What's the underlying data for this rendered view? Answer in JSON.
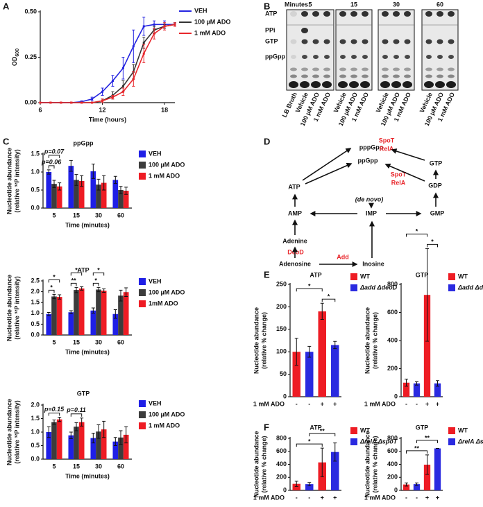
{
  "panel_labels": [
    "A",
    "B",
    "C",
    "D",
    "E",
    "F"
  ],
  "gel": {
    "header": "Minutes:",
    "timepoints": [
      "5",
      "15",
      "30",
      "60"
    ],
    "rows": [
      "ATP",
      "PPi",
      "GTP",
      "ppGpp"
    ],
    "lanes": [
      [
        "LB Broth",
        "Vehicle",
        "100 µM ADO",
        "1 mM ADO"
      ],
      [
        "Vehicle",
        "100 µM ADO",
        "1 mM ADO"
      ],
      [
        "Vehicle",
        "100 µM ADO",
        "1 mM ADO"
      ],
      [
        "Vehicle",
        "100 µM ADO",
        "1 mM ADO"
      ]
    ]
  },
  "diagram": {
    "nodes": [
      "pppGpp",
      "ppGpp",
      "GTP",
      "GDP",
      "ATP",
      "(de novo)",
      "IMP",
      "AMP",
      "GMP",
      "Adenine",
      "Adenosine",
      "Inosine"
    ],
    "enzymes": [
      "SpoT",
      "RelA",
      "SpoT",
      "RelA",
      "DeoD",
      "Add"
    ]
  },
  "chart_data": [
    {
      "type": "line",
      "x": [
        6,
        7,
        8,
        9,
        10,
        11,
        12,
        13,
        14,
        15,
        16,
        17,
        18,
        19
      ],
      "series": [
        {
          "name": "VEH",
          "color": "#2424e0",
          "values": [
            0,
            0,
            0,
            0,
            0.005,
            0.02,
            0.06,
            0.12,
            0.19,
            0.31,
            0.42,
            0.43,
            0.43,
            0.43
          ],
          "errors": [
            0,
            0,
            0,
            0,
            0.005,
            0.01,
            0.02,
            0.03,
            0.06,
            0.09,
            0.05,
            0.02,
            0.02,
            0.01
          ]
        },
        {
          "name": "100 µM ADO",
          "color": "#333333",
          "values": [
            0,
            0,
            0,
            0,
            0,
            0,
            0.01,
            0.04,
            0.09,
            0.17,
            0.33,
            0.4,
            0.42,
            0.43
          ],
          "errors": [
            0,
            0,
            0,
            0,
            0,
            0,
            0.01,
            0.02,
            0.03,
            0.04,
            0.03,
            0.02,
            0.01,
            0.01
          ]
        },
        {
          "name": "1 mM ADO",
          "color": "#e8262b",
          "values": [
            0,
            0,
            0,
            0,
            0,
            0,
            0.01,
            0.03,
            0.06,
            0.13,
            0.27,
            0.38,
            0.42,
            0.43
          ],
          "errors": [
            0,
            0,
            0,
            0,
            0,
            0,
            0.01,
            0.01,
            0.02,
            0.04,
            0.05,
            0.03,
            0.02,
            0.01
          ]
        }
      ],
      "xlim": [
        6,
        19
      ],
      "xticks": [
        6,
        12,
        18
      ],
      "ylim": [
        0,
        0.5
      ],
      "yticks": [
        {
          "value": 0,
          "label": "0.00"
        },
        {
          "value": 0.25,
          "label": "0.25"
        },
        {
          "value": 0.5,
          "label": "0.50"
        }
      ],
      "xlabel": "Time (hours)",
      "ylabel": [
        "OD",
        "600"
      ]
    },
    {
      "type": "grouped_bar",
      "title": "ppGpp",
      "categories": [
        "5",
        "15",
        "30",
        "60"
      ],
      "series": [
        {
          "name": "VEH",
          "color": "#1f1fe6",
          "values": [
            1.0,
            1.17,
            1.02,
            0.78
          ],
          "errors": [
            0.06,
            0.15,
            0.2,
            0.1
          ]
        },
        {
          "name": "100 µM ADO",
          "color": "#3c3c3c",
          "values": [
            0.67,
            0.78,
            0.65,
            0.5
          ],
          "errors": [
            0.1,
            0.15,
            0.15,
            0.1
          ]
        },
        {
          "name": "1 mM ADO",
          "color": "#ee1c24",
          "values": [
            0.6,
            0.75,
            0.7,
            0.48
          ],
          "errors": [
            0.1,
            0.15,
            0.2,
            0.1
          ]
        }
      ],
      "ylim": [
        0,
        1.5
      ],
      "yticks": [
        {
          "value": 0,
          "label": "0.0"
        },
        {
          "value": 0.5,
          "label": "0.5"
        },
        {
          "value": 1,
          "label": "1.0"
        },
        {
          "value": 1.5,
          "label": "1.5"
        }
      ],
      "xlabel": "Time (minutes)",
      "ylabel": [
        "Nucleotide abundance",
        "(relative ³²P intensity)"
      ],
      "brackets": [
        {
          "label": "p=0.06",
          "category": 0,
          "from": 0,
          "to": 1
        },
        {
          "label": "p=0.07",
          "category": 0,
          "from": 0,
          "to": 2
        }
      ]
    },
    {
      "type": "grouped_bar",
      "title": "ATP",
      "categories": [
        "5",
        "15",
        "30",
        "60"
      ],
      "series": [
        {
          "name": "VEH",
          "color": "#1f1fe6",
          "values": [
            0.97,
            1.05,
            1.13,
            0.97
          ],
          "errors": [
            0.07,
            0.07,
            0.12,
            0.2
          ]
        },
        {
          "name": "100 µM ADO",
          "color": "#3c3c3c",
          "values": [
            1.78,
            2.08,
            2.1,
            1.82
          ],
          "errors": [
            0.1,
            0.12,
            0.1,
            0.25
          ]
        },
        {
          "name": "1mM ADO",
          "color": "#ee1c24",
          "values": [
            1.76,
            2.15,
            2.05,
            1.98
          ],
          "errors": [
            0.1,
            0.08,
            0.08,
            0.2
          ]
        }
      ],
      "ylim": [
        0,
        2.5
      ],
      "yticks": [
        {
          "value": 0,
          "label": "0.0"
        },
        {
          "value": 0.5,
          "label": "0.5"
        },
        {
          "value": 1,
          "label": "1.0"
        },
        {
          "value": 1.5,
          "label": "1.5"
        },
        {
          "value": 2,
          "label": "2.0"
        },
        {
          "value": 2.5,
          "label": "2.5"
        }
      ],
      "xlabel": "Time (minutes)",
      "ylabel": [
        "Nucleotide abundance",
        "(relative ³²P intensity)"
      ],
      "brackets": [
        {
          "label": "*",
          "category": 0,
          "from": 0,
          "to": 1
        },
        {
          "label": "*",
          "category": 0,
          "from": 0,
          "to": 2
        },
        {
          "label": "**",
          "category": 1,
          "from": 0,
          "to": 1
        },
        {
          "label": "*",
          "category": 1,
          "from": 0,
          "to": 2
        },
        {
          "label": "*",
          "category": 2,
          "from": 0,
          "to": 1
        },
        {
          "label": "*",
          "category": 2,
          "from": 0,
          "to": 2
        }
      ]
    },
    {
      "type": "grouped_bar",
      "title": "GTP",
      "categories": [
        "5",
        "15",
        "30",
        "60"
      ],
      "series": [
        {
          "name": "VEH",
          "color": "#1f1fe6",
          "values": [
            1.0,
            0.88,
            0.78,
            0.65
          ],
          "errors": [
            0.2,
            0.12,
            0.18,
            0.15
          ]
        },
        {
          "name": "100 µM ADO",
          "color": "#3c3c3c",
          "values": [
            1.37,
            1.2,
            1.02,
            0.8
          ],
          "errors": [
            0.08,
            0.15,
            0.25,
            0.25
          ]
        },
        {
          "name": "1 mM ADO",
          "color": "#ee1c24",
          "values": [
            1.47,
            1.37,
            1.1,
            0.9
          ],
          "errors": [
            0.08,
            0.15,
            0.3,
            0.3
          ]
        }
      ],
      "ylim": [
        0,
        2
      ],
      "yticks": [
        {
          "value": 0,
          "label": "0.0"
        },
        {
          "value": 0.5,
          "label": "0.5"
        },
        {
          "value": 1,
          "label": "1.0"
        },
        {
          "value": 1.5,
          "label": "1.5"
        },
        {
          "value": 2,
          "label": "2.0"
        }
      ],
      "xlabel": "Time (minutes)",
      "ylabel": [
        "Nucleotide abundance",
        "(relative ³²P intensity)"
      ],
      "brackets": [
        {
          "label": "p=0.15",
          "category": 0,
          "from": 0,
          "to": 2
        },
        {
          "label": "p=0.11",
          "category": 1,
          "from": 0,
          "to": 2
        }
      ]
    },
    {
      "type": "bar",
      "title": "ATP",
      "categories": [
        "-",
        "-",
        "+",
        "+"
      ],
      "xlabel": "1 mM ADO",
      "series": [
        {
          "name": "WT",
          "color": "#ee1c24",
          "values": [
            100,
            null,
            190,
            null
          ],
          "errors": [
            30,
            null,
            18,
            null
          ]
        },
        {
          "name": "Δadd ΔdeoD",
          "color": "#2a2ae0",
          "values": [
            null,
            100,
            null,
            115
          ],
          "errors": [
            null,
            12,
            null,
            8
          ]
        }
      ],
      "ylim": [
        0,
        250
      ],
      "yticks": [
        0,
        50,
        100,
        150,
        200,
        250
      ],
      "ylabel": [
        "Nucleotide abundance",
        "(relative % change)"
      ],
      "brackets": [
        {
          "label": "*",
          "from": 2,
          "to": 3
        },
        {
          "label": "*",
          "from": 0,
          "to": 2
        }
      ]
    },
    {
      "type": "bar",
      "title": "GTP",
      "categories": [
        "-",
        "-",
        "+",
        "+"
      ],
      "xlabel": "1 mM ADO",
      "series": [
        {
          "name": "WT",
          "color": "#ee1c24",
          "values": [
            100,
            null,
            725,
            null
          ],
          "errors": [
            25,
            null,
            330,
            null
          ]
        },
        {
          "name": "Δadd ΔdeoD",
          "color": "#2a2ae0",
          "values": [
            null,
            95,
            null,
            95
          ],
          "errors": [
            null,
            12,
            null,
            20
          ]
        }
      ],
      "ylim": [
        0,
        800
      ],
      "yticks": [
        0,
        200,
        400,
        600,
        800
      ],
      "ylabel": [
        "Nucleotide abundance",
        "(relative % change)"
      ],
      "brackets": [
        {
          "label": "*",
          "from": 2,
          "to": 3
        },
        {
          "label": "*",
          "from": 0,
          "to": 2
        }
      ]
    },
    {
      "type": "bar",
      "title": "ATP",
      "categories": [
        "-",
        "-",
        "+",
        "+"
      ],
      "xlabel": "1 mM ADO",
      "series": [
        {
          "name": "WT",
          "color": "#ee1c24",
          "values": [
            100,
            null,
            430,
            null
          ],
          "errors": [
            40,
            null,
            220,
            null
          ]
        },
        {
          "name": "ΔrelA ΔspoT",
          "color": "#2a2ae0",
          "values": [
            null,
            95,
            null,
            590
          ],
          "errors": [
            null,
            25,
            null,
            140
          ]
        }
      ],
      "ylim": [
        0,
        800
      ],
      "yticks": [
        0,
        200,
        400,
        600,
        800
      ],
      "ylabel": [
        "Nucleotide abundance",
        "(relative % change)"
      ],
      "brackets": [
        {
          "label": "*",
          "from": 0,
          "to": 2
        },
        {
          "label": "**",
          "from": 1,
          "to": 3
        }
      ]
    },
    {
      "type": "bar",
      "title": "GTP",
      "categories": [
        "-",
        "-",
        "+",
        "+"
      ],
      "xlabel": "1 mM ADO",
      "series": [
        {
          "name": "WT",
          "color": "#ee1c24",
          "values": [
            90,
            null,
            395,
            null
          ],
          "errors": [
            25,
            null,
            150,
            null
          ]
        },
        {
          "name": "ΔrelA ΔspoT",
          "color": "#2a2ae0",
          "values": [
            null,
            95,
            null,
            645
          ],
          "errors": [
            null,
            20,
            null,
            0
          ]
        }
      ],
      "ylim": [
        0,
        800
      ],
      "yticks": [
        0,
        200,
        400,
        600,
        800
      ],
      "ylabel": [
        "Nucleotide abundance",
        "(relative % change)"
      ],
      "brackets": [
        {
          "label": "**",
          "from": 0,
          "to": 2
        },
        {
          "label": "**",
          "from": 1,
          "to": 3
        }
      ]
    }
  ]
}
